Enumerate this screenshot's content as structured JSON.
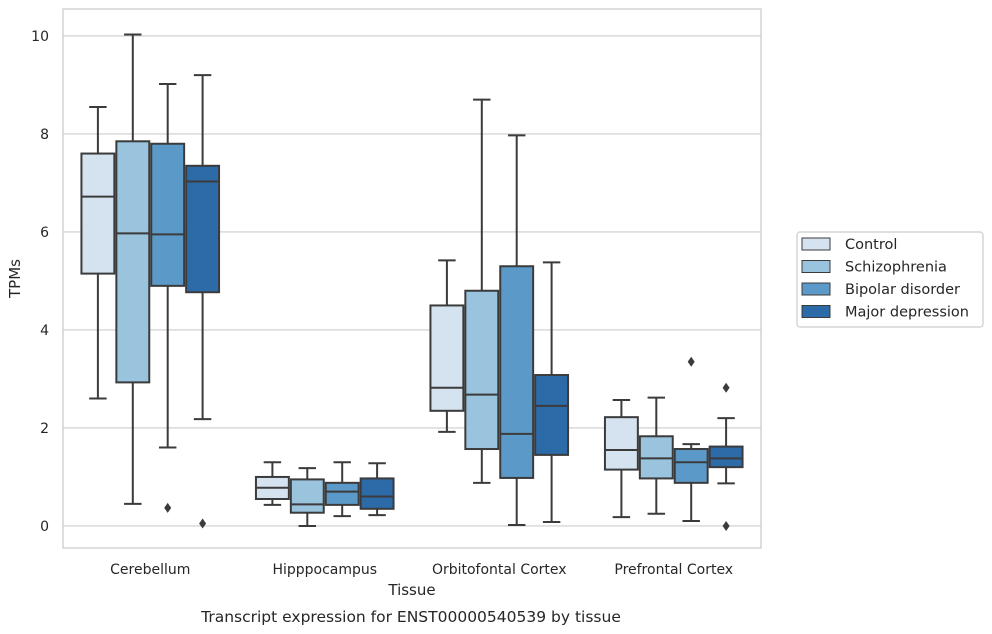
{
  "chart_data": {
    "type": "boxplot",
    "caption": "Transcript expression for ENST00000540539 by tissue",
    "xlabel": "Tissue",
    "ylabel": "TPMs",
    "ylim": [
      -0.45,
      10.55
    ],
    "yticks": [
      0,
      2,
      4,
      6,
      8,
      10
    ],
    "grid": "horizontal",
    "legend_position": "right",
    "categories": [
      "Cerebellum",
      "Hipppocampus",
      "Orbitofontal Cortex",
      "Prefrontal Cortex"
    ],
    "series": [
      {
        "name": "Control",
        "color": "#d5e3f0",
        "boxes": [
          {
            "whisker_low": 2.6,
            "q1": 5.15,
            "median": 6.72,
            "q3": 7.6,
            "whisker_high": 8.55,
            "outliers": []
          },
          {
            "whisker_low": 0.43,
            "q1": 0.55,
            "median": 0.78,
            "q3": 1.0,
            "whisker_high": 1.3,
            "outliers": []
          },
          {
            "whisker_low": 1.92,
            "q1": 2.35,
            "median": 2.82,
            "q3": 4.5,
            "whisker_high": 5.42,
            "outliers": []
          },
          {
            "whisker_low": 0.18,
            "q1": 1.15,
            "median": 1.55,
            "q3": 2.22,
            "whisker_high": 2.57,
            "outliers": []
          }
        ]
      },
      {
        "name": "Schizophrenia",
        "color": "#9ac3de",
        "boxes": [
          {
            "whisker_low": 0.45,
            "q1": 2.93,
            "median": 5.97,
            "q3": 7.85,
            "whisker_high": 10.03,
            "outliers": []
          },
          {
            "whisker_low": 0.0,
            "q1": 0.27,
            "median": 0.44,
            "q3": 0.95,
            "whisker_high": 1.18,
            "outliers": []
          },
          {
            "whisker_low": 0.88,
            "q1": 1.57,
            "median": 2.68,
            "q3": 4.8,
            "whisker_high": 8.7,
            "outliers": []
          },
          {
            "whisker_low": 0.25,
            "q1": 0.97,
            "median": 1.38,
            "q3": 1.83,
            "whisker_high": 2.62,
            "outliers": []
          }
        ]
      },
      {
        "name": "Bipolar disorder",
        "color": "#5b9ac8",
        "boxes": [
          {
            "whisker_low": 1.6,
            "q1": 4.9,
            "median": 5.95,
            "q3": 7.8,
            "whisker_high": 9.02,
            "outliers": [
              0.37
            ]
          },
          {
            "whisker_low": 0.2,
            "q1": 0.43,
            "median": 0.7,
            "q3": 0.88,
            "whisker_high": 1.3,
            "outliers": []
          },
          {
            "whisker_low": 0.02,
            "q1": 0.98,
            "median": 1.88,
            "q3": 5.3,
            "whisker_high": 7.97,
            "outliers": []
          },
          {
            "whisker_low": 0.1,
            "q1": 0.88,
            "median": 1.3,
            "q3": 1.57,
            "whisker_high": 1.67,
            "outliers": [
              3.35
            ]
          }
        ]
      },
      {
        "name": "Major depression",
        "color": "#2c6aa8",
        "boxes": [
          {
            "whisker_low": 2.18,
            "q1": 4.77,
            "median": 7.03,
            "q3": 7.35,
            "whisker_high": 9.2,
            "outliers": [
              0.05
            ]
          },
          {
            "whisker_low": 0.22,
            "q1": 0.35,
            "median": 0.6,
            "q3": 0.97,
            "whisker_high": 1.28,
            "outliers": []
          },
          {
            "whisker_low": 0.08,
            "q1": 1.45,
            "median": 2.45,
            "q3": 3.08,
            "whisker_high": 5.38,
            "outliers": []
          },
          {
            "whisker_low": 0.87,
            "q1": 1.2,
            "median": 1.38,
            "q3": 1.62,
            "whisker_high": 2.2,
            "outliers": [
              2.82,
              0.0
            ]
          }
        ]
      }
    ]
  }
}
